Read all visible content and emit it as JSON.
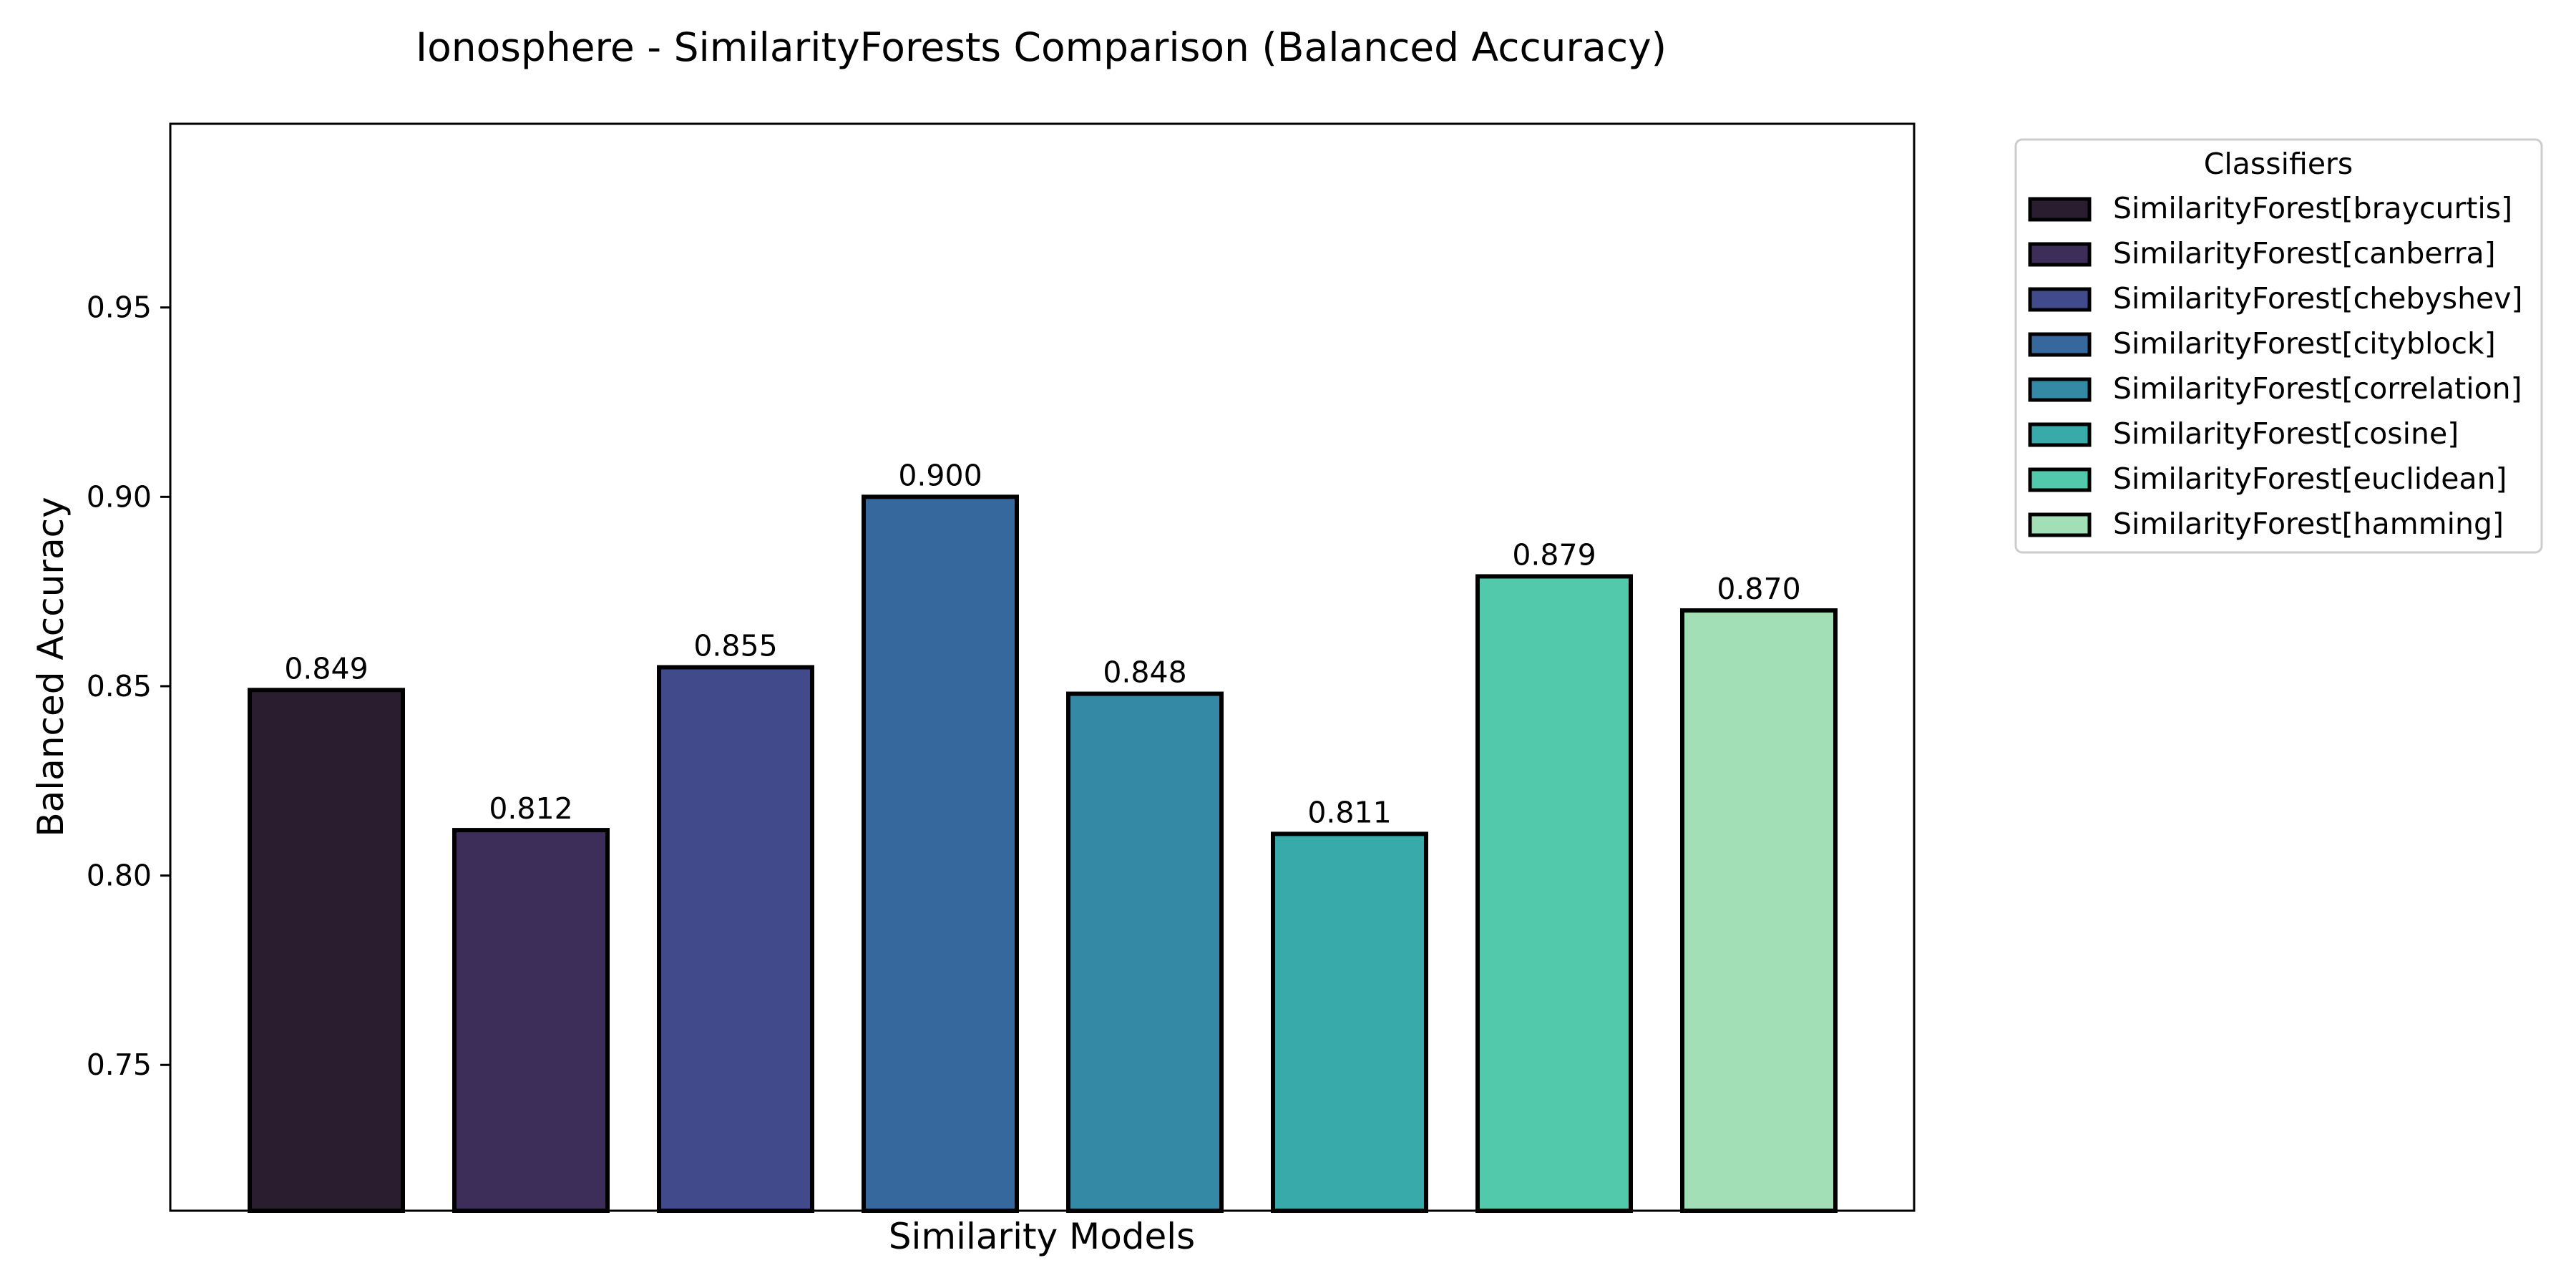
{
  "chart_data": {
    "type": "bar",
    "title": "Ionosphere - SimilarityForests Comparison (Balanced Accuracy)",
    "xlabel": "Similarity Models",
    "ylabel": "Balanced Accuracy",
    "ylim": [
      0.7115,
      0.9985
    ],
    "yticks": [
      0.75,
      0.8,
      0.85,
      0.9,
      0.95
    ],
    "ytick_labels": [
      "0.75",
      "0.80",
      "0.85",
      "0.90",
      "0.95"
    ],
    "grid": false,
    "categories": [
      "SimilarityForest[braycurtis]",
      "SimilarityForest[canberra]",
      "SimilarityForest[chebyshev]",
      "SimilarityForest[cityblock]",
      "SimilarityForest[correlation]",
      "SimilarityForest[cosine]",
      "SimilarityForest[euclidean]",
      "SimilarityForest[hamming]"
    ],
    "values": [
      0.849,
      0.812,
      0.855,
      0.9,
      0.848,
      0.811,
      0.879,
      0.87
    ],
    "value_labels": [
      "0.849",
      "0.812",
      "0.855",
      "0.900",
      "0.848",
      "0.811",
      "0.879",
      "0.870"
    ],
    "colors": [
      "#2a1d2f",
      "#3c2e58",
      "#414b8c",
      "#37689d",
      "#348aa4",
      "#38aaaa",
      "#52c9ab",
      "#a2dfb6"
    ],
    "legend": {
      "title": "Classifiers",
      "placement": "outside-top-right"
    }
  }
}
